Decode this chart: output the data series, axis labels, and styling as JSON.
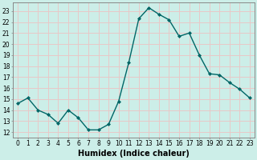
{
  "x": [
    0,
    1,
    2,
    3,
    4,
    5,
    6,
    7,
    8,
    9,
    10,
    11,
    12,
    13,
    14,
    15,
    16,
    17,
    18,
    19,
    20,
    21,
    22,
    23
  ],
  "y": [
    14.6,
    15.1,
    14.0,
    13.6,
    12.8,
    14.0,
    13.3,
    12.2,
    12.2,
    12.7,
    14.8,
    18.3,
    22.3,
    23.3,
    22.7,
    22.2,
    20.7,
    21.0,
    19.0,
    17.3,
    17.2,
    16.5,
    15.9,
    15.1
  ],
  "xlabel": "Humidex (Indice chaleur)",
  "line_color": "#006666",
  "marker": "D",
  "marker_size": 2.0,
  "linewidth": 1.0,
  "bg_color": "#cceee8",
  "grid_color": "#e8c8c8",
  "xlim": [
    -0.5,
    23.5
  ],
  "ylim": [
    11.5,
    23.8
  ],
  "yticks": [
    12,
    13,
    14,
    15,
    16,
    17,
    18,
    19,
    20,
    21,
    22,
    23
  ],
  "xticks": [
    0,
    1,
    2,
    3,
    4,
    5,
    6,
    7,
    8,
    9,
    10,
    11,
    12,
    13,
    14,
    15,
    16,
    17,
    18,
    19,
    20,
    21,
    22,
    23
  ],
  "tick_fontsize": 5.5,
  "xlabel_fontsize": 7.0,
  "spine_color": "#888888"
}
